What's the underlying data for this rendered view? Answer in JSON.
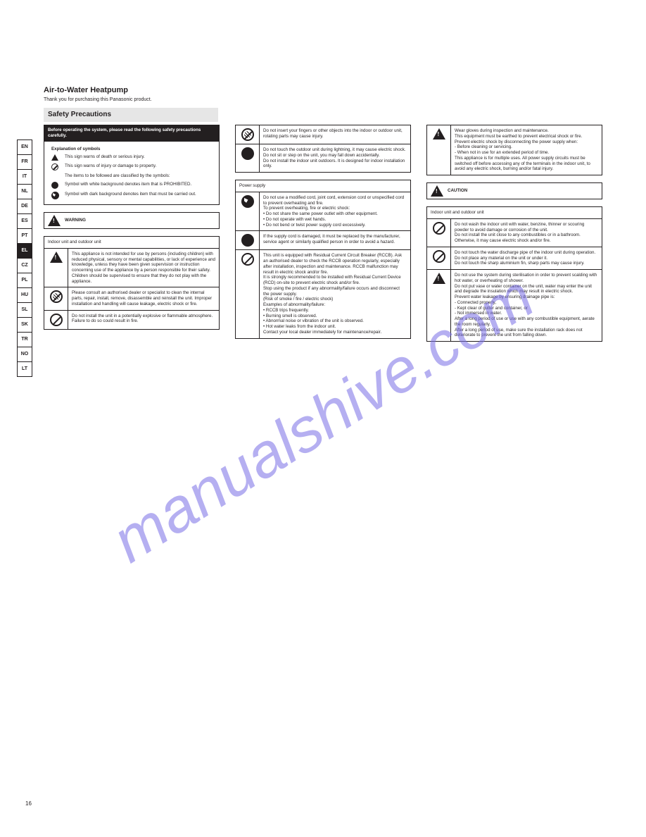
{
  "header": {
    "title": "Air-to-Water Heatpump",
    "subtitle": "Thank you for purchasing this Panasonic product."
  },
  "section_title": "Safety Precautions",
  "lang_tabs": [
    "EN",
    "FR",
    "IT",
    "NL",
    "DE",
    "ES",
    "PT",
    "EL",
    "CZ",
    "PL",
    "HU",
    "SL",
    "SK",
    "TR",
    "NO",
    "LT"
  ],
  "lang_active_index": 7,
  "intro": {
    "top_line": "Before operating the system, please read the following safety precautions carefully.",
    "row_header": "Explanation of symbols",
    "rows": [
      {
        "icon": "tri-small",
        "text": "This sign warns of death or serious injury."
      },
      {
        "icon": "circ-slash-small",
        "text": "This sign warns of injury or damage to property."
      },
      {
        "icon": "",
        "text": "The items to be followed are classified by the symbols:"
      },
      {
        "icon": "circ-solid-small",
        "text": "Symbol with white background denotes item that is PROHIBITED."
      },
      {
        "icon": "plug-ico-small",
        "text": "Symbol with dark background denotes item that must be carried out."
      }
    ]
  },
  "warning_banner": {
    "label": "WARNING"
  },
  "col1": {
    "table1_header": "Indoor unit and outdoor unit",
    "table1": [
      {
        "icon": "tri",
        "title": "",
        "body": "This appliance is not intended for use by persons (including children) with reduced physical, sensory or mental capabilities, or lack of experience and knowledge, unless they have been given supervision or instruction concerning use of the appliance by a person responsible for their safety. Children should be supervised to ensure that they do not play with the appliance."
      },
      {
        "icon": "circ-slash-grey",
        "title": "",
        "body": "Please consult an authorised dealer or specialist to clean the internal parts, repair, install, remove, disassemble and reinstall the unit. Improper installation and handling will cause leakage, electric shock or fire."
      },
      {
        "icon": "circ-slash",
        "title": "",
        "body": "Do not install the unit in a potentially explosive or flammable atmosphere. Failure to do so could result in fire."
      }
    ]
  },
  "col2": {
    "table1": [
      {
        "icon": "circ-slash-grey",
        "title": "",
        "body": "Do not insert your fingers or other objects into the indoor or outdoor unit, rotating parts may cause injury."
      },
      {
        "icon": "circ-solid",
        "title": "",
        "body": "Do not touch the outdoor unit during lightning, it may cause electric shock.\nDo not sit or step on the unit, you may fall down accidentally.\nDo not install the indoor unit outdoors. It is designed for indoor installation only."
      }
    ],
    "table2_header": "Power supply",
    "table2": [
      {
        "icon": "plug",
        "title": "",
        "body": "Do not use a modified cord, joint cord, extension cord or unspecified cord to prevent overheating and fire.\nTo prevent overheating, fire or electric shock:\n• Do not share the same power outlet with other equipment.\n• Do not operate with wet hands.\n• Do not bend or twist power supply cord excessively."
      },
      {
        "icon": "circ-solid",
        "title": "",
        "body": "If the supply cord is damaged, it must be replaced by the manufacturer, service agent or similarly qualified person in order to avoid a hazard."
      },
      {
        "icon": "circ-slash",
        "title": "",
        "body": "This unit is equipped with Residual Current Circuit Breaker (RCCB). Ask an authorised dealer to check the RCCB operation regularly, especially after installation, inspection and maintenance. RCCB malfunction may result in electric shock and/or fire.\nIt is strongly recommended to be installed with Residual Current Device (RCD) on-site to prevent electric shock and/or fire.\nStop using the product if any abnormality/failure occurs and disconnect the power supply.\n(Risk of smoke / fire / electric shock)\nExamples of abnormality/failure:\n• RCCB trips frequently.\n• Burning smell is observed.\n• Abnormal noise or vibration of the unit is observed.\n• Hot water leaks from the indoor unit.\nContact your local dealer immediately for maintenance/repair."
      }
    ]
  },
  "col3": {
    "table1": [
      {
        "icon": "tri",
        "title": "",
        "body": "Wear gloves during inspection and maintenance.\nThis equipment must be earthed to prevent electrical shock or fire.\nPrevent electric shock by disconnecting the power supply when:\n- Before cleaning or servicing.\n- When not in use for an extended period of time.\nThis appliance is for multiple uses. All power supply circuits must be switched off before accessing any of the terminals in the indoor unit, to avoid any electric shock, burning and/or fatal injury."
      }
    ],
    "caution_banner": {
      "label": "CAUTION"
    },
    "table2_header": "Indoor unit and outdoor unit",
    "table2": [
      {
        "icon": "circ-slash",
        "title": "",
        "body": "Do not wash the indoor unit with water, benzine, thinner or scouring powder to avoid damage or corrosion of the unit.\nDo not install the unit close to any combustibles or in a bathroom. Otherwise, it may cause electric shock and/or fire."
      },
      {
        "icon": "circ-slash",
        "title": "",
        "body": "Do not touch the water discharge pipe of the indoor unit during operation.\nDo not place any material on the unit or under it.\nDo not touch the sharp aluminium fin, sharp parts may cause injury."
      },
      {
        "icon": "tri",
        "title": "",
        "body": "Do not use the system during sterilisation in order to prevent scalding with hot water, or overheating of shower.\nDo not put vase or water container on the unit, water may enter the unit and degrade the insulation which may result in electric shock.\nPrevent water leakage by ensuring drainage pipe is:\n- Connected properly,\n- Kept clear of gutter and container, or\n- Not immersed in water.\nAfter a long period of use or use with any combustible equipment, aerate the room regularly.\nAfter a long period of use, make sure the installation rack does not deteriorate to prevent the unit from falling down."
      }
    ]
  },
  "footer": {
    "page_left": "16",
    "page_right": ""
  }
}
